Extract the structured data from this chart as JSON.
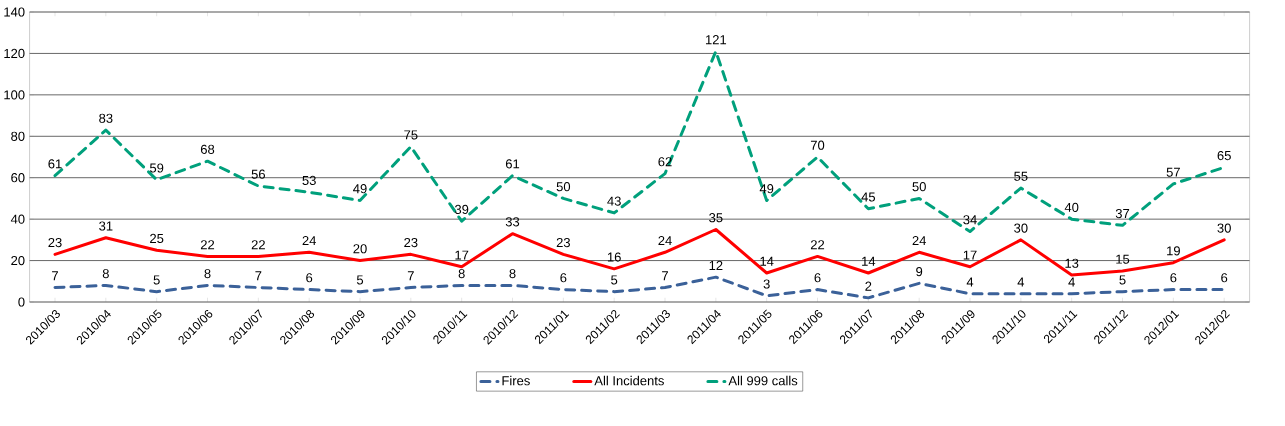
{
  "chart_data": {
    "type": "line",
    "categories": [
      "2010/03",
      "2010/04",
      "2010/05",
      "2010/06",
      "2010/07",
      "2010/08",
      "2010/09",
      "2010/10",
      "2010/11",
      "2010/12",
      "2011/01",
      "2011/02",
      "2011/03",
      "2011/04",
      "2011/05",
      "2011/06",
      "2011/07",
      "2011/08",
      "2011/09",
      "2011/10",
      "2011/11",
      "2011/12",
      "2012/01",
      "2012/02"
    ],
    "series": [
      {
        "name": "Fires",
        "color": "#3b6199",
        "line_style": "dashed",
        "values": [
          7,
          8,
          5,
          8,
          7,
          6,
          5,
          7,
          8,
          8,
          6,
          5,
          7,
          12,
          3,
          6,
          2,
          9,
          4,
          4,
          4,
          5,
          6,
          6
        ]
      },
      {
        "name": "All Incidents",
        "color": "#ff0000",
        "line_style": "solid",
        "values": [
          23,
          31,
          25,
          22,
          22,
          24,
          20,
          23,
          17,
          33,
          23,
          16,
          24,
          35,
          14,
          22,
          14,
          24,
          17,
          30,
          13,
          15,
          19,
          30
        ]
      },
      {
        "name": "All 999 calls",
        "color": "#00a07c",
        "line_style": "dashed",
        "values": [
          61,
          83,
          59,
          68,
          56,
          53,
          49,
          75,
          39,
          61,
          50,
          43,
          62,
          121,
          49,
          70,
          45,
          50,
          34,
          55,
          40,
          37,
          57,
          65
        ]
      }
    ],
    "ylim": [
      0,
      140
    ],
    "yticks": [
      0,
      20,
      40,
      60,
      80,
      100,
      120,
      140
    ],
    "grid": "y",
    "legend": "bottom",
    "marker": "none",
    "data_labels": true
  }
}
